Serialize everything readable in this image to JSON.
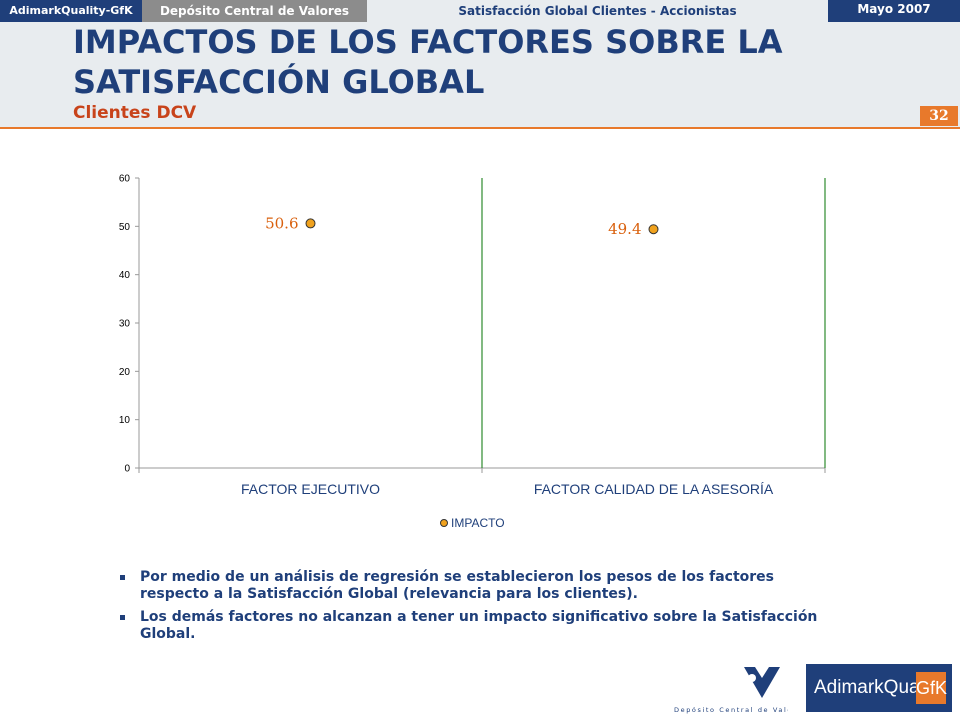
{
  "topbar": {
    "brand": "AdimarkQuality-GfK",
    "client": "Depósito Central de Valores",
    "study": "Satisfacción Global Clientes - Accionistas",
    "date": "Mayo 2007"
  },
  "header": {
    "title": "IMPACTOS DE LOS FACTORES SOBRE LA SATISFACCIÓN GLOBAL",
    "subtitle": "Clientes DCV",
    "page_number": "32"
  },
  "chart_data": {
    "type": "scatter",
    "title": "",
    "xlabel": "",
    "ylabel": "",
    "categories": [
      "FACTOR EJECUTIVO",
      "FACTOR CALIDAD DE LA ASESORÍA"
    ],
    "series": [
      {
        "name": "IMPACTO",
        "values": [
          50.6,
          49.4
        ],
        "color": "#f0a21e"
      }
    ],
    "data_labels": [
      "50.6",
      "49.4"
    ],
    "ylim": [
      0,
      60
    ],
    "yticks": [
      0,
      10,
      20,
      30,
      40,
      50,
      60
    ],
    "grid": false,
    "legend_position": "bottom",
    "label_color": "#d9600d",
    "separator_color": "#2e8b2e",
    "category_label_color": "#1f3f7a"
  },
  "bullets": [
    "Por medio de un análisis de regresión se establecieron los pesos de los factores respecto a la Satisfacción Global (relevancia para los clientes).",
    "Los demás factores no alcanzan a tener un impacto significativo sobre la Satisfacción Global."
  ],
  "footer": {
    "dcv_logo_text": "Depósito Central de Valores",
    "gfk_logo_text": "AdimarkQuality",
    "gfk_box_text": "GfK"
  },
  "colors": {
    "navy": "#1f3f7a",
    "orange": "#e8792b",
    "header_bg": "#e8ecef"
  }
}
